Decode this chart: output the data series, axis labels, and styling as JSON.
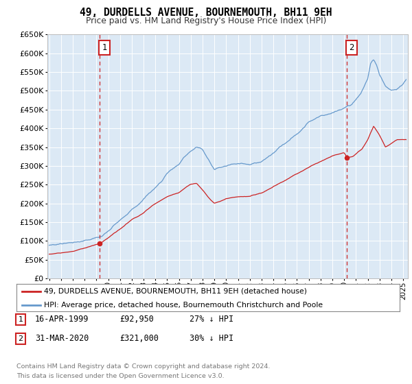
{
  "title": "49, DURDELLS AVENUE, BOURNEMOUTH, BH11 9EH",
  "subtitle": "Price paid vs. HM Land Registry's House Price Index (HPI)",
  "bg_color": "#dce9f5",
  "red_color": "#cc2222",
  "blue_color": "#6699cc",
  "t1_year": 1999.29,
  "t1_price": 92950,
  "t2_year": 2020.25,
  "t2_price": 321000,
  "ylim": [
    0,
    650000
  ],
  "xlim_start": 1994.85,
  "xlim_end": 2025.4,
  "ytick_values": [
    0,
    50000,
    100000,
    150000,
    200000,
    250000,
    300000,
    350000,
    400000,
    450000,
    500000,
    550000,
    600000,
    650000
  ],
  "xtick_values": [
    1995,
    1996,
    1997,
    1998,
    1999,
    2000,
    2001,
    2002,
    2003,
    2004,
    2005,
    2006,
    2007,
    2008,
    2009,
    2010,
    2011,
    2012,
    2013,
    2014,
    2015,
    2016,
    2017,
    2018,
    2019,
    2020,
    2021,
    2022,
    2023,
    2024,
    2025
  ],
  "legend_line1": "49, DURDELLS AVENUE, BOURNEMOUTH, BH11 9EH (detached house)",
  "legend_line2": "HPI: Average price, detached house, Bournemouth Christchurch and Poole",
  "table": [
    {
      "num": "1",
      "date": "16-APR-1999",
      "price": "£92,950",
      "hpi": "27% ↓ HPI"
    },
    {
      "num": "2",
      "date": "31-MAR-2020",
      "price": "£321,000",
      "hpi": "30% ↓ HPI"
    }
  ],
  "footer1": "Contains HM Land Registry data © Crown copyright and database right 2024.",
  "footer2": "This data is licensed under the Open Government Licence v3.0."
}
